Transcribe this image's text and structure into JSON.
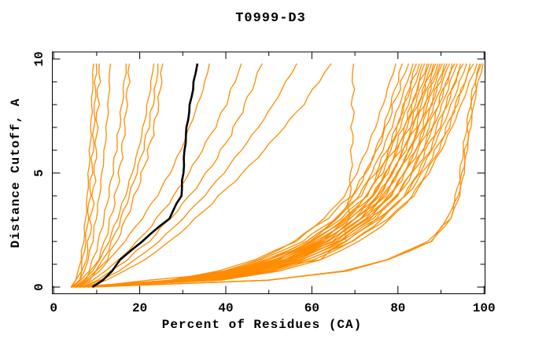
{
  "chart_data": {
    "type": "line",
    "title": "T0999-D3",
    "xlabel": "Percent of Residues (CA)",
    "ylabel": "Distance Cutoff, A",
    "xlim": [
      0,
      100
    ],
    "ylim": [
      0,
      10
    ],
    "x_major_ticks": [
      0,
      20,
      40,
      60,
      80,
      100
    ],
    "x_minor_ticks": [
      10,
      30,
      50,
      70,
      90
    ],
    "y_major_ticks": [
      0,
      5,
      10
    ],
    "y_minor_ticks": [
      1,
      2,
      3,
      4,
      6,
      7,
      8,
      9
    ],
    "legend": "none",
    "grid": false,
    "colors": {
      "model_curve": "#FF8C00",
      "highlight_curve": "#000000",
      "frame": "#000000",
      "background": "#FFFFFF"
    },
    "y_levels": [
      0,
      0.3,
      0.7,
      1.2,
      2,
      3,
      4,
      5,
      6,
      7,
      8,
      9,
      9.8
    ],
    "highlighted_series": {
      "x": [
        9,
        11.5,
        13.5,
        15.5,
        20.5,
        26.8,
        29.6,
        30.1,
        30.4,
        30.9,
        31.7,
        32.6,
        33.4
      ]
    },
    "series": [
      {
        "x": [
          4,
          5,
          5.8,
          6.3,
          6.9,
          7.4,
          7.8,
          8.1,
          8.4,
          8.7,
          8.9,
          9.1,
          9.3
        ]
      },
      {
        "x": [
          4.2,
          5.4,
          6.2,
          6.8,
          7.5,
          8,
          8.4,
          8.8,
          9.1,
          9.3,
          9.5,
          9.7,
          9.9
        ]
      },
      {
        "x": [
          4.5,
          5.8,
          6.7,
          7.4,
          8.1,
          8.7,
          9.2,
          9.6,
          9.9,
          10.1,
          10.3,
          10.5,
          10.6
        ]
      },
      {
        "x": [
          4.2,
          6,
          7.2,
          8,
          9,
          9.8,
          10.6,
          11.2,
          11.8,
          12.3,
          12.7,
          13,
          13.2
        ]
      },
      {
        "x": [
          4.5,
          6.5,
          8,
          9.2,
          10.5,
          11.7,
          12.8,
          13.7,
          14.5,
          15.2,
          15.8,
          16.4,
          16.8
        ]
      },
      {
        "x": [
          5,
          7,
          8.8,
          10.2,
          11.8,
          13.2,
          14.4,
          15.3,
          16,
          16.6,
          17,
          17.4,
          17.6
        ]
      },
      {
        "x": [
          4.8,
          7,
          9,
          10.8,
          12.8,
          14.8,
          16.6,
          18.2,
          19.6,
          20.8,
          21.8,
          22.7,
          23.3
        ]
      },
      {
        "x": [
          5.2,
          7.5,
          9.6,
          11.5,
          13.6,
          15.7,
          17.6,
          19.3,
          20.8,
          22,
          23,
          23.8,
          24.2
        ]
      },
      {
        "x": [
          5.5,
          8,
          10.2,
          12.2,
          14.5,
          16.8,
          18.8,
          20.6,
          22.1,
          23.4,
          24.4,
          25,
          25.4
        ]
      },
      {
        "x": [
          5.5,
          8,
          10.5,
          13,
          16.5,
          20.5,
          24,
          27,
          29.5,
          31.5,
          33.5,
          35.2,
          36.2
        ]
      },
      {
        "x": [
          6,
          9,
          12,
          15,
          19.5,
          24,
          28,
          31.5,
          34.5,
          37.5,
          40,
          42,
          43.6
        ]
      },
      {
        "x": [
          6.5,
          10,
          13.5,
          17,
          22,
          27,
          31.5,
          35.5,
          39,
          42,
          44.5,
          46.8,
          48.5
        ]
      },
      {
        "x": [
          7,
          11,
          15,
          19,
          24.5,
          30,
          35,
          39.5,
          43.5,
          47.5,
          51,
          54,
          56.5
        ]
      },
      {
        "x": [
          7.5,
          12,
          16.5,
          21,
          27,
          33,
          38.5,
          44,
          49,
          53.5,
          58,
          61.5,
          64.5
        ]
      },
      {
        "x": [
          8,
          22,
          45,
          62,
          67.5,
          68.3,
          68.7,
          69,
          69.2,
          69.4,
          69.5,
          69.6,
          69.7
        ]
      },
      {
        "x": [
          4,
          28.6,
          39.8,
          47.7,
          56,
          62.8,
          67.6,
          70.4,
          72.7,
          74.7,
          76.5,
          78.1,
          79.5
        ]
      },
      {
        "x": [
          5,
          32.4,
          43.7,
          51.8,
          59.5,
          65.6,
          69.8,
          72.5,
          74.9,
          76.8,
          78.3,
          79.9,
          81
        ]
      },
      {
        "x": [
          6,
          27.2,
          38,
          47,
          56.1,
          63.5,
          69.1,
          72.4,
          75.1,
          77.2,
          79,
          80.9,
          82.5
        ]
      },
      {
        "x": [
          7,
          30.1,
          41.8,
          50.1,
          58.9,
          66,
          71,
          73.9,
          76.4,
          78.5,
          80.3,
          82.1,
          83.5
        ]
      },
      {
        "x": [
          8,
          33.7,
          45.5,
          54,
          62,
          68.3,
          72.7,
          75.4,
          78,
          79.9,
          81.5,
          83.1,
          84.3
        ]
      },
      {
        "x": [
          4,
          28.1,
          39.1,
          48.5,
          57.8,
          65.5,
          71.2,
          74.6,
          77.4,
          79.6,
          81.4,
          83.3,
          85
        ]
      },
      {
        "x": [
          5,
          30.8,
          42.8,
          51.4,
          60.3,
          67.6,
          72.8,
          75.8,
          78.3,
          80.5,
          82.3,
          84.1,
          85.6
        ]
      },
      {
        "x": [
          6,
          34.5,
          46.5,
          55.2,
          63.4,
          69.8,
          74.3,
          77.1,
          79.7,
          81.7,
          83.4,
          85,
          86.2
        ]
      },
      {
        "x": [
          7,
          28.6,
          39.9,
          49.5,
          59,
          66.8,
          72.7,
          76.2,
          79,
          81.2,
          83.1,
          85.1,
          86.8
        ]
      },
      {
        "x": [
          8,
          31.4,
          43.7,
          52.4,
          61.5,
          69,
          74.2,
          77.3,
          79.9,
          82.1,
          84,
          85.8,
          87.3
        ]
      },
      {
        "x": [
          4,
          35.1,
          47.4,
          56.2,
          64.5,
          71.1,
          75.7,
          78.6,
          81.2,
          83.2,
          84.9,
          86.6,
          87.8
        ]
      },
      {
        "x": [
          5,
          29.1,
          40.6,
          50.3,
          60,
          68,
          74,
          77.5,
          80.4,
          82.6,
          84.6,
          86.5,
          88.3
        ]
      },
      {
        "x": [
          6,
          32,
          44.4,
          53.3,
          62.6,
          70.2,
          75.5,
          78.6,
          81.3,
          83.5,
          85.4,
          87.3,
          88.8
        ]
      },
      {
        "x": [
          7,
          35.7,
          48.2,
          57.2,
          65.6,
          72.3,
          77,
          79.9,
          82.6,
          84.7,
          86.4,
          88,
          89.3
        ]
      },
      {
        "x": [
          8,
          29.6,
          41.3,
          51.2,
          61.1,
          69.1,
          75.3,
          78.8,
          81.7,
          84,
          86,
          88,
          89.8
        ]
      },
      {
        "x": [
          4,
          32.5,
          45.2,
          54.2,
          63.7,
          71.3,
          76.8,
          79.9,
          82.6,
          84.9,
          86.9,
          88.8,
          90.3
        ]
      },
      {
        "x": [
          5,
          36.3,
          49,
          58.1,
          66.7,
          73.5,
          78.3,
          81.3,
          84,
          86.1,
          87.8,
          89.5,
          90.8
        ]
      },
      {
        "x": [
          6,
          30.2,
          42,
          52.1,
          62.2,
          70.4,
          76.6,
          80.2,
          83.2,
          85.6,
          87.6,
          89.6,
          91.4
        ]
      },
      {
        "x": [
          7,
          33.1,
          46,
          55.2,
          64.9,
          72.7,
          78.2,
          81.4,
          84.2,
          86.5,
          88.5,
          90.4,
          92
        ]
      },
      {
        "x": [
          8,
          37,
          50,
          59.3,
          68.1,
          75,
          79.8,
          82.9,
          85.7,
          87.8,
          89.5,
          91.3,
          92.6
        ]
      },
      {
        "x": [
          4,
          30.8,
          42.9,
          53.1,
          63.4,
          71.8,
          78.1,
          81.8,
          84.8,
          87.2,
          89.3,
          91.3,
          93.2
        ]
      },
      {
        "x": [
          5,
          33.8,
          46.9,
          56.3,
          66.1,
          74.1,
          79.7,
          83,
          85.8,
          88.2,
          90.3,
          92.2,
          93.8
        ]
      },
      {
        "x": [
          6,
          37.8,
          51,
          60.5,
          69.5,
          76.5,
          81.5,
          84.6,
          87.4,
          89.6,
          91.4,
          93.2,
          94.5
        ]
      },
      {
        "x": [
          7,
          31.4,
          43.8,
          54.3,
          64.7,
          73.3,
          79.8,
          83.6,
          86.6,
          89.1,
          91.2,
          93.3,
          95.2
        ]
      },
      {
        "x": [
          8,
          34.6,
          48,
          57.6,
          67.7,
          75.8,
          81.6,
          85,
          87.8,
          90.2,
          92.4,
          94.4,
          96
        ]
      },
      {
        "x": [
          4,
          38.7,
          52.3,
          62,
          71.1,
          78.4,
          83.4,
          86.6,
          89.5,
          91.8,
          93.6,
          95.5,
          96.8
        ]
      },
      {
        "x": [
          5,
          32.2,
          44.9,
          55.6,
          66.4,
          75.2,
          81.8,
          85.7,
          88.8,
          91.4,
          93.5,
          95.6,
          97.6
        ]
      },
      {
        "x": [
          6,
          35.4,
          49.2,
          59,
          69.4,
          77.7,
          83.6,
          87.1,
          90,
          92.5,
          94.7,
          96.7,
          98.4
        ]
      },
      {
        "x": [
          7,
          49.5,
          67.3,
          77.2,
          87.1,
          91.6,
          93.5,
          94.5,
          95.2,
          96,
          96.8,
          97.8,
          99
        ]
      },
      {
        "x": [
          8,
          49.7,
          67.6,
          77.5,
          87.5,
          92,
          93.9,
          94.9,
          95.7,
          96.4,
          97.2,
          98.2,
          99.4
        ]
      },
      {
        "x": [
          9,
          49.9,
          67.9,
          77.8,
          87.8,
          92.3,
          94.3,
          95.3,
          96,
          96.8,
          97.6,
          98.6,
          99.8
        ]
      }
    ]
  }
}
